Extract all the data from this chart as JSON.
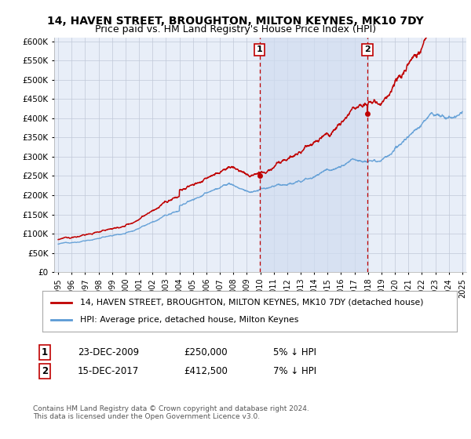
{
  "title": "14, HAVEN STREET, BROUGHTON, MILTON KEYNES, MK10 7DY",
  "subtitle": "Price paid vs. HM Land Registry's House Price Index (HPI)",
  "legend_line1": "14, HAVEN STREET, BROUGHTON, MILTON KEYNES, MK10 7DY (detached house)",
  "legend_line2": "HPI: Average price, detached house, Milton Keynes",
  "annotation1_date": "23-DEC-2009",
  "annotation1_price": "£250,000",
  "annotation1_hpi": "5% ↓ HPI",
  "annotation2_date": "15-DEC-2017",
  "annotation2_price": "£412,500",
  "annotation2_hpi": "7% ↓ HPI",
  "footnote": "Contains HM Land Registry data © Crown copyright and database right 2024.\nThis data is licensed under the Open Government Licence v3.0.",
  "sale1_year": 2009.96,
  "sale1_price": 250000,
  "sale2_year": 2017.96,
  "sale2_price": 412500,
  "hpi_color": "#5b9bd5",
  "price_color": "#c00000",
  "annotation_color": "#c00000",
  "bg_color": "#e8eef8",
  "shade_color": "#d0dcf0",
  "grid_color": "#c0c8d8",
  "figwidth": 6.0,
  "figheight": 5.6,
  "dpi": 100
}
